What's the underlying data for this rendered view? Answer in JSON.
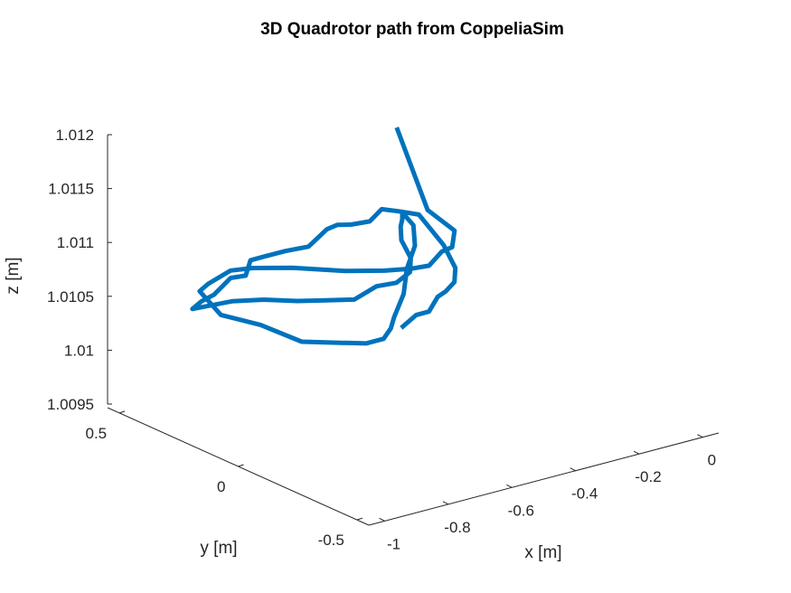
{
  "chart_data": {
    "type": "line",
    "dimension": "3d",
    "title": "3D Quadrotor path from CoppeliaSim",
    "xlabel": "x [m]",
    "ylabel": "y [m]",
    "zlabel": "z [m]",
    "xlim": [
      -1.05,
      0.05
    ],
    "ylim": [
      -0.55,
      0.55
    ],
    "zlim": [
      1.0095,
      1.012
    ],
    "x_ticks": [
      -1,
      -0.8,
      -0.6,
      -0.4,
      -0.2,
      0
    ],
    "y_ticks": [
      -0.5,
      0,
      0.5
    ],
    "z_ticks": [
      1.0095,
      1.01,
      1.0105,
      1.011,
      1.0115,
      1.012
    ],
    "x_tick_labels": [
      "-1",
      "-0.8",
      "-0.6",
      "-0.4",
      "-0.2",
      "0"
    ],
    "y_tick_labels": [
      "-0.5",
      "0",
      "0.5"
    ],
    "z_tick_labels": [
      "1.0095",
      "1.01",
      "1.0105",
      "1.011",
      "1.0115",
      "1.012"
    ],
    "grid": false,
    "color": "#0072BD",
    "series": [
      {
        "x": [
          -0.56,
          -0.52,
          -0.48,
          -0.445,
          -0.405,
          -0.37,
          -0.33,
          -0.3,
          -0.31,
          -0.335,
          -0.36,
          -0.39,
          -0.44,
          -0.47,
          -0.51,
          -0.575,
          -0.64,
          -0.71,
          -0.75,
          -0.78,
          -0.82,
          -0.88,
          -0.935,
          -0.985,
          -0.92,
          -0.85,
          -0.79,
          -0.73,
          -0.67,
          -0.615,
          -0.56,
          -0.51,
          -0.47,
          -0.44,
          -0.41,
          -0.375,
          -0.34,
          -0.31,
          -0.32,
          -0.36,
          -0.43,
          -0.5,
          -0.575,
          -0.63,
          -0.69,
          -0.745,
          -0.8,
          -0.865,
          -0.92,
          -0.955,
          -0.94,
          -0.89,
          -0.835,
          -0.78,
          -0.7,
          -0.61,
          -0.53,
          -0.47,
          -0.42,
          -0.38,
          -0.34,
          -0.31,
          -0.32,
          -0.35
        ],
        "y": [
          -0.03,
          -0.04,
          -0.04,
          -0.03,
          -0.01,
          0.0,
          0.05,
          0.14,
          0.23,
          0.28,
          0.32,
          0.33,
          0.34,
          0.36,
          0.35,
          0.34,
          0.35,
          0.35,
          0.35,
          0.33,
          0.34,
          0.33,
          0.31,
          0.28,
          0.2,
          0.16,
          0.1,
          0.06,
          0.02,
          0.0,
          -0.01,
          0.0,
          0.05,
          0.11,
          0.17,
          0.22,
          0.26,
          0.3,
          0.24,
          0.18,
          0.12,
          0.04,
          -0.02,
          -0.08,
          -0.13,
          -0.13,
          -0.08,
          -0.02,
          0.08,
          0.2,
          0.31,
          0.34,
          0.32,
          0.3,
          0.24,
          0.14,
          0.08,
          0.05,
          0.04,
          0.04,
          0.05,
          0.08,
          0.18,
          0.27
        ],
        "z": [
          1.0104,
          1.0105,
          1.0105,
          1.0106,
          1.0106,
          1.01065,
          1.0107,
          1.0108,
          1.011,
          1.011,
          1.011,
          1.0109,
          1.0109,
          1.0109,
          1.0109,
          1.0108,
          1.0108,
          1.0108,
          1.0108,
          1.0107,
          1.0107,
          1.0106,
          1.0106,
          1.0106,
          1.0107,
          1.0107,
          1.0107,
          1.0107,
          1.0107,
          1.0108,
          1.0108,
          1.01085,
          1.0109,
          1.0109,
          1.0109,
          1.01095,
          1.01095,
          1.01095,
          1.0109,
          1.0108,
          1.0107,
          1.0106,
          1.0105,
          1.0105,
          1.0105,
          1.0105,
          1.0105,
          1.0105,
          1.0106,
          1.0106,
          1.0107,
          1.0107,
          1.0108,
          1.0108,
          1.0108,
          1.0108,
          1.0108,
          1.0108,
          1.0108,
          1.0109,
          1.0109,
          1.011,
          1.0111,
          1.0118
        ]
      }
    ]
  }
}
